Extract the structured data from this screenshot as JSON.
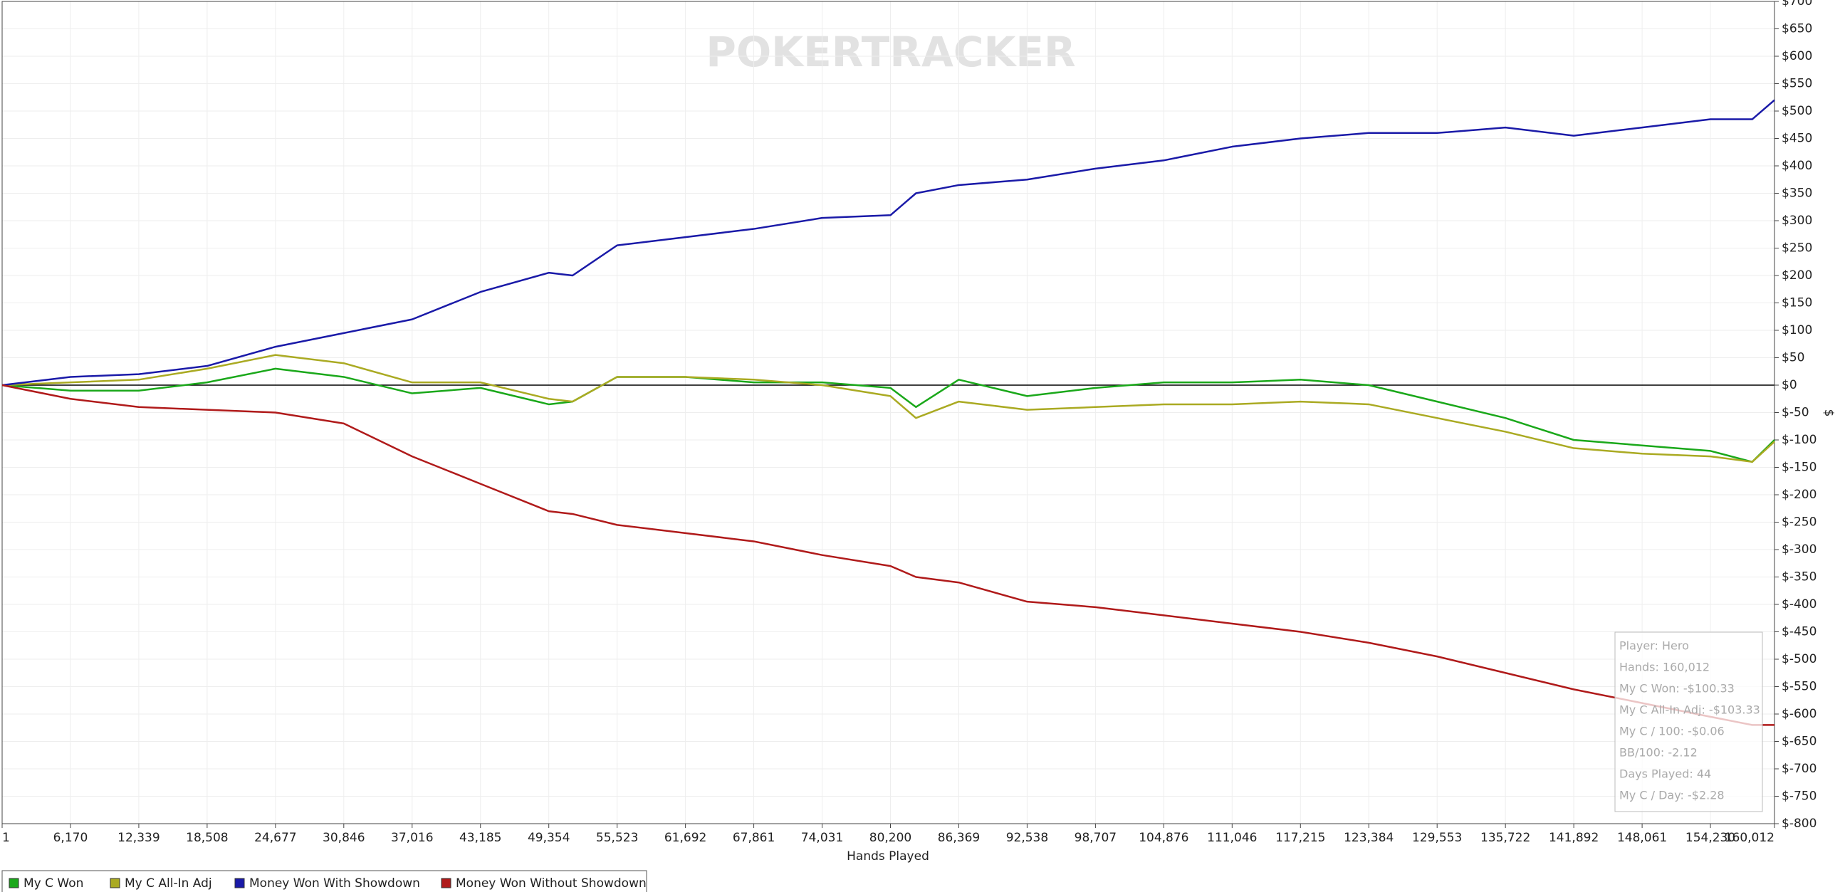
{
  "chart_data": {
    "type": "line",
    "watermark": "POKERTRACKER",
    "xlabel": "Hands Played",
    "ylabel": "$",
    "x": [
      1,
      6170,
      12339,
      18508,
      24677,
      30846,
      37016,
      43185,
      49354,
      51500,
      55523,
      61692,
      67861,
      74031,
      80200,
      82500,
      86369,
      92538,
      98707,
      104876,
      111046,
      117215,
      123384,
      129553,
      135722,
      141892,
      148061,
      154230,
      158000,
      160012
    ],
    "xlim": [
      1,
      160012
    ],
    "xticks": [
      1,
      {
        "value": 6170,
        "label": "6,170"
      },
      {
        "value": 12339,
        "label": "12,339"
      },
      {
        "value": 18508,
        "label": "18,508"
      },
      {
        "value": 24677,
        "label": "24,677"
      },
      {
        "value": 30846,
        "label": "30,846"
      },
      {
        "value": 37016,
        "label": "37,016"
      },
      {
        "value": 43185,
        "label": "43,185"
      },
      {
        "value": 49354,
        "label": "49,354"
      },
      {
        "value": 55523,
        "label": "55,523"
      },
      {
        "value": 61692,
        "label": "61,692"
      },
      {
        "value": 67861,
        "label": "67,861"
      },
      {
        "value": 74031,
        "label": "74,031"
      },
      {
        "value": 80200,
        "label": "80,200"
      },
      {
        "value": 86369,
        "label": "86,369"
      },
      {
        "value": 92538,
        "label": "92,538"
      },
      {
        "value": 98707,
        "label": "98,707"
      },
      {
        "value": 104876,
        "label": "104,876"
      },
      {
        "value": 111046,
        "label": "111,046"
      },
      {
        "value": 117215,
        "label": "117,215"
      },
      {
        "value": 123384,
        "label": "123,384"
      },
      {
        "value": 129553,
        "label": "129,553"
      },
      {
        "value": 135722,
        "label": "135,722"
      },
      {
        "value": 141892,
        "label": "141,892"
      },
      {
        "value": 148061,
        "label": "148,061"
      },
      {
        "value": 154230,
        "label": "154,230"
      },
      {
        "value": 160012,
        "label": "160,012"
      }
    ],
    "ylim": [
      -800,
      700
    ],
    "yticks": [
      {
        "value": 700,
        "label": "$700"
      },
      {
        "value": 650,
        "label": "$650"
      },
      {
        "value": 600,
        "label": "$600"
      },
      {
        "value": 550,
        "label": "$550"
      },
      {
        "value": 500,
        "label": "$500"
      },
      {
        "value": 450,
        "label": "$450"
      },
      {
        "value": 400,
        "label": "$400"
      },
      {
        "value": 350,
        "label": "$350"
      },
      {
        "value": 300,
        "label": "$300"
      },
      {
        "value": 250,
        "label": "$250"
      },
      {
        "value": 200,
        "label": "$200"
      },
      {
        "value": 150,
        "label": "$150"
      },
      {
        "value": 100,
        "label": "$100"
      },
      {
        "value": 50,
        "label": "$50"
      },
      {
        "value": 0,
        "label": "$0"
      },
      {
        "value": -50,
        "label": "$-50"
      },
      {
        "value": -100,
        "label": "$-100"
      },
      {
        "value": -150,
        "label": "$-150"
      },
      {
        "value": -200,
        "label": "$-200"
      },
      {
        "value": -250,
        "label": "$-250"
      },
      {
        "value": -300,
        "label": "$-300"
      },
      {
        "value": -350,
        "label": "$-350"
      },
      {
        "value": -400,
        "label": "$-400"
      },
      {
        "value": -450,
        "label": "$-450"
      },
      {
        "value": -500,
        "label": "$-500"
      },
      {
        "value": -550,
        "label": "$-550"
      },
      {
        "value": -600,
        "label": "$-600"
      },
      {
        "value": -650,
        "label": "$-650"
      },
      {
        "value": -700,
        "label": "$-700"
      },
      {
        "value": -750,
        "label": "$-750"
      },
      {
        "value": -800,
        "label": "$-800"
      }
    ],
    "grid": true,
    "series": [
      {
        "name": "My C Won",
        "color": "#1aa81a",
        "values": [
          0,
          -10,
          -10,
          5,
          30,
          15,
          -15,
          -5,
          -35,
          -30,
          15,
          15,
          5,
          5,
          -5,
          -40,
          10,
          -20,
          -5,
          5,
          5,
          10,
          0,
          -30,
          -60,
          -100,
          -110,
          -120,
          -140,
          -100
        ]
      },
      {
        "name": "My C All-In Adj",
        "color": "#aaaa22",
        "values": [
          0,
          5,
          10,
          30,
          55,
          40,
          5,
          5,
          -25,
          -30,
          15,
          15,
          10,
          0,
          -20,
          -60,
          -30,
          -45,
          -40,
          -35,
          -35,
          -30,
          -35,
          -60,
          -85,
          -115,
          -125,
          -130,
          -140,
          -103
        ]
      },
      {
        "name": "Money Won With Showdown",
        "color": "#1a1aa8",
        "values": [
          0,
          15,
          20,
          35,
          70,
          95,
          120,
          170,
          205,
          200,
          255,
          270,
          285,
          305,
          310,
          350,
          365,
          375,
          395,
          410,
          435,
          450,
          460,
          460,
          470,
          455,
          470,
          485,
          485,
          520
        ]
      },
      {
        "name": "Money Won Without Showdown",
        "color": "#b01a1a",
        "values": [
          0,
          -25,
          -40,
          -45,
          -50,
          -70,
          -130,
          -180,
          -230,
          -235,
          -255,
          -270,
          -285,
          -310,
          -330,
          -350,
          -360,
          -395,
          -405,
          -420,
          -435,
          -450,
          -470,
          -495,
          -525,
          -555,
          -580,
          -605,
          -620,
          -620
        ]
      }
    ],
    "tooltip": [
      "Player: Hero",
      "Hands: 160,012",
      "My C Won: -$100.33",
      "My C All-In Adj: -$103.33",
      "My C / 100: -$0.06",
      "BB/100: -2.12",
      "Days Played: 44",
      "My C / Day: -$2.28"
    ]
  }
}
